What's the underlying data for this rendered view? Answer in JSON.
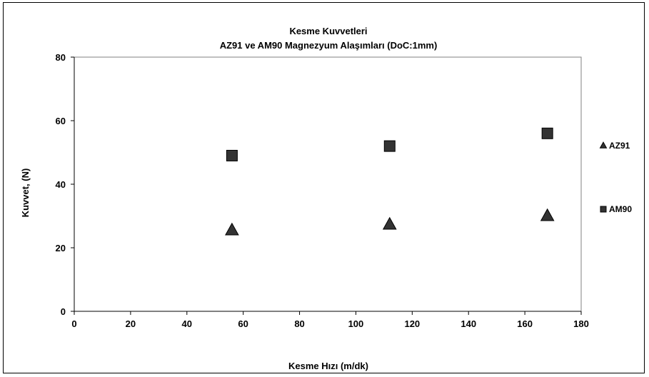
{
  "chart_data": {
    "type": "scatter",
    "title": "Kesme Kuvvetleri",
    "subtitle": "AZ91 ve AM90 Magnezyum Alaşımları (DoC:1mm)",
    "xlabel": "Kesme Hızı (m/dk)",
    "ylabel": "Kuvvet, (N)",
    "xlim": [
      0,
      180
    ],
    "ylim": [
      0,
      80
    ],
    "xticks": [
      "0",
      "20",
      "40",
      "60",
      "80",
      "100",
      "120",
      "140",
      "160",
      "180"
    ],
    "yticks": [
      "0",
      "20",
      "40",
      "60",
      "80"
    ],
    "grid": false,
    "legend_position": "right",
    "series": [
      {
        "name": "AZ91",
        "marker": "triangle",
        "color": "#333333",
        "points": [
          {
            "x": 56,
            "y": 25.5
          },
          {
            "x": 112,
            "y": 27.3
          },
          {
            "x": 168,
            "y": 30
          }
        ]
      },
      {
        "name": "AM90",
        "marker": "square",
        "color": "#333333",
        "points": [
          {
            "x": 56,
            "y": 49
          },
          {
            "x": 112,
            "y": 52
          },
          {
            "x": 168,
            "y": 56
          }
        ]
      }
    ]
  }
}
